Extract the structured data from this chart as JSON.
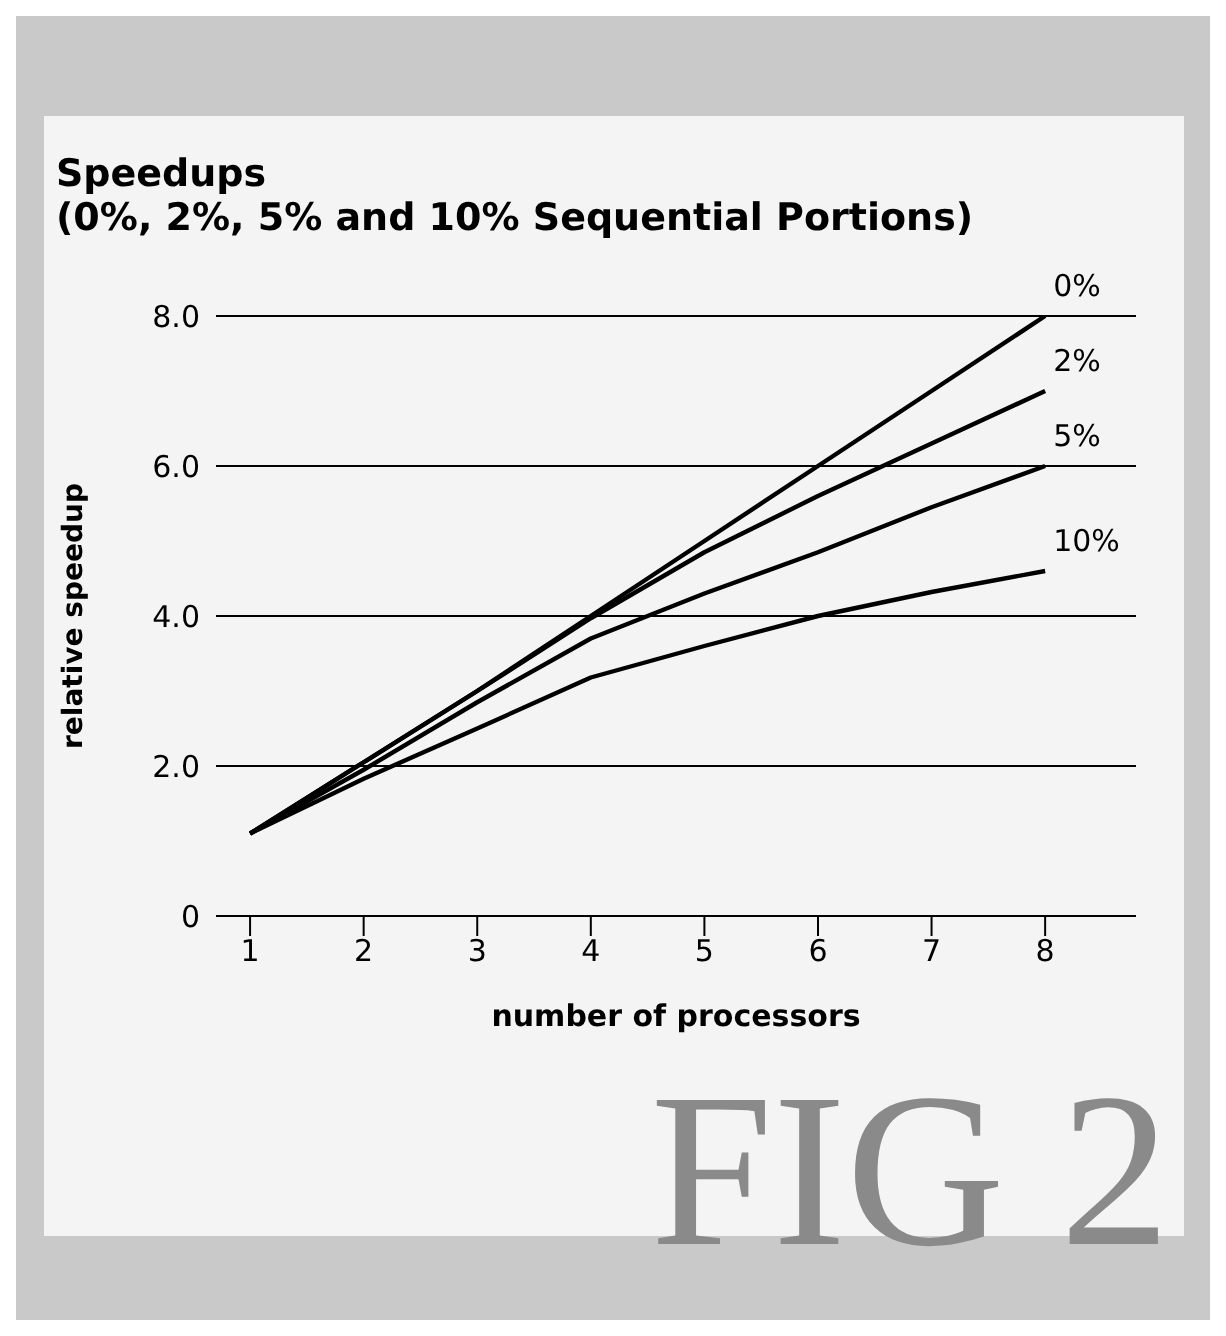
{
  "chart_data": {
    "type": "line",
    "title": "Speedups\n(0%, 2%, 5% and 10% Sequential Portions)",
    "xlabel": "number of processors",
    "ylabel": "relative speedup",
    "annotations": [
      "FIG 2"
    ],
    "x": [
      1,
      2,
      3,
      4,
      5,
      6,
      7,
      8
    ],
    "series": [
      {
        "name": "0%",
        "color": "#000000",
        "values": [
          1.1,
          2.05,
          3.0,
          4.0,
          5.0,
          6.0,
          7.0,
          8.0
        ]
      },
      {
        "name": "2%",
        "color": "#000000",
        "values": [
          1.1,
          2.05,
          3.0,
          3.97,
          4.85,
          5.6,
          6.3,
          7.0
        ]
      },
      {
        "name": "5%",
        "color": "#000000",
        "values": [
          1.1,
          1.95,
          2.85,
          3.7,
          4.3,
          4.85,
          5.45,
          6.0
        ]
      },
      {
        "name": "10%",
        "color": "#000000",
        "values": [
          1.1,
          1.83,
          2.5,
          3.18,
          3.6,
          4.0,
          4.32,
          4.6
        ]
      }
    ],
    "xlim": [
      0.7,
      8.8
    ],
    "xticks": [
      1,
      2,
      3,
      4,
      5,
      6,
      7,
      8
    ],
    "ylim": [
      0,
      8
    ],
    "yticks": [
      0,
      {
        "value": 2,
        "label": "2.0"
      },
      {
        "value": 4,
        "label": "4.0"
      },
      {
        "value": 6,
        "label": "6.0"
      },
      {
        "value": 8,
        "label": "8.0"
      }
    ],
    "grid": "y",
    "legend": false,
    "marker": "none",
    "line_style": "solid"
  }
}
